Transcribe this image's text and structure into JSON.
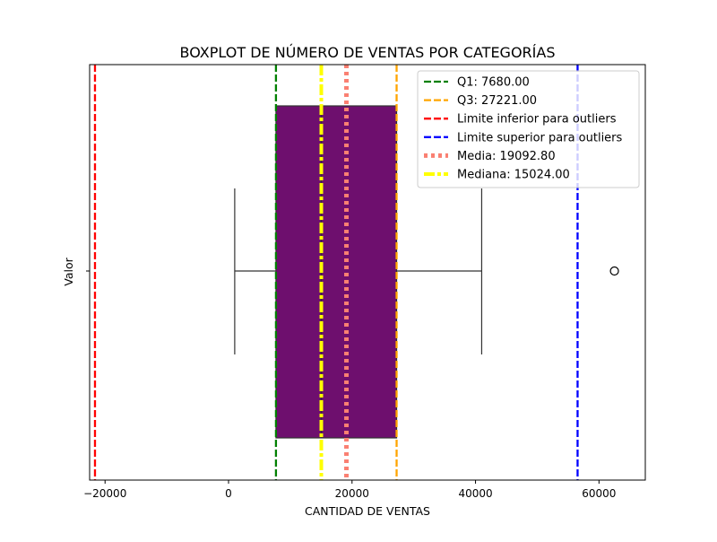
{
  "chart_data": {
    "type": "boxplot",
    "title": "BOXPLOT DE NÚMERO DE VENTAS POR CATEGORÍAS",
    "xlabel": "CANTIDAD DE VENTAS",
    "ylabel": "Valor",
    "xlim": [
      -22500,
      67500
    ],
    "xticks": [
      -20000,
      0,
      20000,
      40000,
      60000
    ],
    "xtick_labels": [
      "−20000",
      "0",
      "20000",
      "40000",
      "60000"
    ],
    "box": {
      "whisker_low": 1000,
      "q1": 7680,
      "median": 15024,
      "q3": 27221,
      "whisker_high": 41000,
      "outliers": [
        62500
      ],
      "fill": "#6e0f6e"
    },
    "reference_lines": [
      {
        "name": "Q1: 7680.00",
        "value": 7680,
        "color": "#008000",
        "style": "dashed"
      },
      {
        "name": "Q3: 27221.00",
        "value": 27221,
        "color": "#ffa500",
        "style": "dashed"
      },
      {
        "name": "Limite inferior para outliers",
        "value": -21632,
        "color": "#ff0000",
        "style": "dashed"
      },
      {
        "name": "Limite superior para outliers",
        "value": 56533,
        "color": "#0000ff",
        "style": "dashed"
      },
      {
        "name": "Media: 19092.80",
        "value": 19092.8,
        "color": "#fa8072",
        "style": "dotted"
      },
      {
        "name": "Mediana: 15024.00",
        "value": 15024,
        "color": "#ffff00",
        "style": "dashdot"
      }
    ],
    "legend_position": "top-right",
    "grid": false
  }
}
